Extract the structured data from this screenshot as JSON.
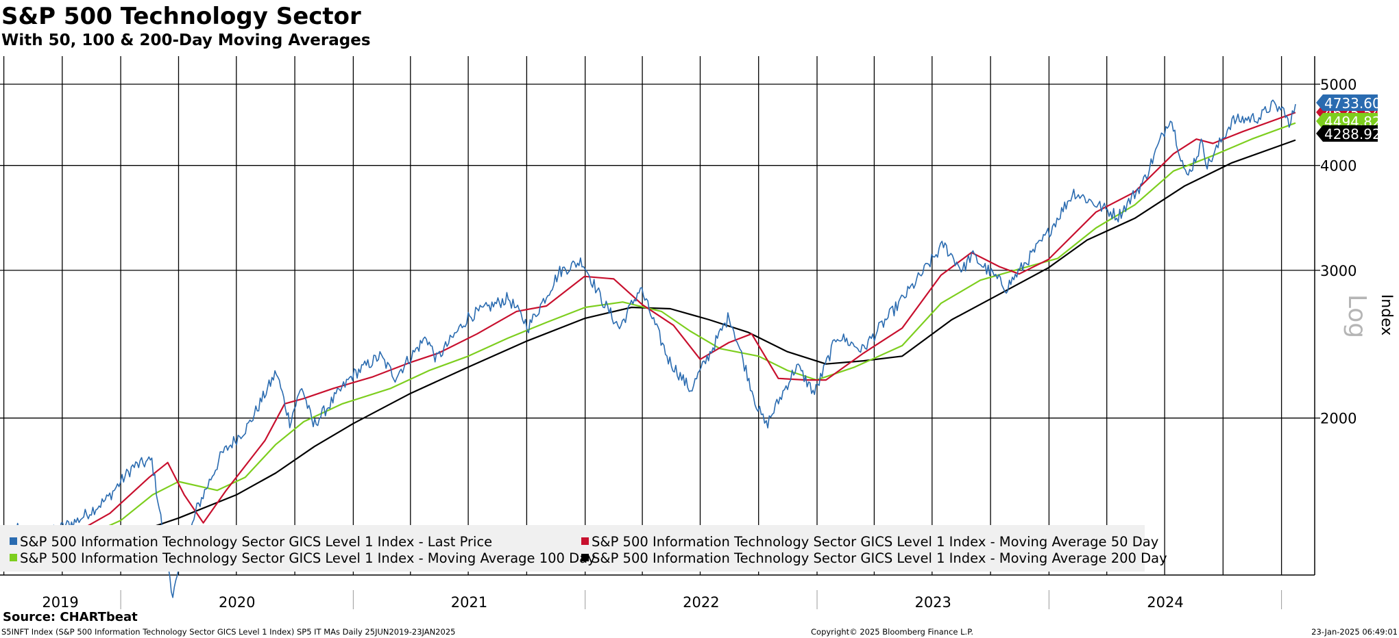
{
  "header": {
    "title": "S&P 500 Technology Sector",
    "subtitle": "With 50, 100 & 200-Day Moving Averages"
  },
  "footer": {
    "source": "Source: CHARTbeat",
    "description": "S5INFT Index (S&P 500 Information Technology Sector GICS Level 1 Index) SP5 IT MAs  Daily 25JUN2019-23JAN2025",
    "copyright": "Copyright© 2025 Bloomberg Finance L.P.",
    "timestamp": "23-Jan-2025 06:49:01"
  },
  "colors": {
    "price": "#2a6bb0",
    "ma50": "#c8102e",
    "ma100": "#7dce1e",
    "ma200": "#000000",
    "legend_bg": "#f0f0f0",
    "grid": "#000000"
  },
  "chart_data": {
    "type": "line",
    "x_range": [
      "2019-06-25",
      "2025-01-23"
    ],
    "y_scale": "log",
    "ylim": [
      1300,
      5400
    ],
    "ylabel": "Index",
    "scale_label": "Log",
    "y_ticks": [
      2000,
      3000,
      4000,
      5000
    ],
    "x_year_labels": [
      "2019",
      "2020",
      "2021",
      "2022",
      "2023",
      "2024"
    ],
    "grid": true,
    "legend_position": "bottom-left",
    "last_value_labels": [
      "4733.60",
      "4625.54",
      "4494.82",
      "4288.92"
    ],
    "series": [
      {
        "name": "S&P 500 Information Technology Sector GICS Level 1 Index - Last Price",
        "color_key": "price",
        "last": 4733.6,
        "points": [
          [
            "2019-06-25",
            1400
          ],
          [
            "2019-07-25",
            1490
          ],
          [
            "2019-08-20",
            1420
          ],
          [
            "2019-09-20",
            1470
          ],
          [
            "2019-10-25",
            1510
          ],
          [
            "2019-12-10",
            1600
          ],
          [
            "2020-01-20",
            1750
          ],
          [
            "2020-02-19",
            1780
          ],
          [
            "2020-03-23",
            1230
          ],
          [
            "2020-04-30",
            1560
          ],
          [
            "2020-06-08",
            1810
          ],
          [
            "2020-07-20",
            1960
          ],
          [
            "2020-09-02",
            2270
          ],
          [
            "2020-09-23",
            1980
          ],
          [
            "2020-10-12",
            2180
          ],
          [
            "2020-10-30",
            1960
          ],
          [
            "2020-12-31",
            2250
          ],
          [
            "2021-02-12",
            2370
          ],
          [
            "2021-03-08",
            2240
          ],
          [
            "2021-04-26",
            2500
          ],
          [
            "2021-05-12",
            2350
          ],
          [
            "2021-07-01",
            2640
          ],
          [
            "2021-09-02",
            2780
          ],
          [
            "2021-10-04",
            2570
          ],
          [
            "2021-11-22",
            2990
          ],
          [
            "2021-12-27",
            3080
          ],
          [
            "2022-01-27",
            2770
          ],
          [
            "2022-02-24",
            2560
          ],
          [
            "2022-03-29",
            2860
          ],
          [
            "2022-05-12",
            2350
          ],
          [
            "2022-06-16",
            2160
          ],
          [
            "2022-08-16",
            2650
          ],
          [
            "2022-09-30",
            2050
          ],
          [
            "2022-10-13",
            1960
          ],
          [
            "2022-11-30",
            2310
          ],
          [
            "2022-12-28",
            2140
          ],
          [
            "2023-02-02",
            2510
          ],
          [
            "2023-03-13",
            2410
          ],
          [
            "2023-05-31",
            2870
          ],
          [
            "2023-07-19",
            3220
          ],
          [
            "2023-08-18",
            3000
          ],
          [
            "2023-09-01",
            3130
          ],
          [
            "2023-10-26",
            2860
          ],
          [
            "2023-12-28",
            3300
          ],
          [
            "2024-02-09",
            3720
          ],
          [
            "2024-04-19",
            3480
          ],
          [
            "2024-05-29",
            3830
          ],
          [
            "2024-07-10",
            4580
          ],
          [
            "2024-08-05",
            3860
          ],
          [
            "2024-08-30",
            4280
          ],
          [
            "2024-09-06",
            3990
          ],
          [
            "2024-10-15",
            4520
          ],
          [
            "2024-11-29",
            4570
          ],
          [
            "2024-12-16",
            4720
          ],
          [
            "2025-01-07",
            4640
          ],
          [
            "2025-01-13",
            4430
          ],
          [
            "2025-01-23",
            4733.6
          ]
        ]
      },
      {
        "name": "S&P 500 Information Technology Sector GICS Level 1 Index - Moving Average 50 Day",
        "color_key": "ma50",
        "last": 4625.54,
        "points": [
          [
            "2019-06-25",
            1380
          ],
          [
            "2019-08-15",
            1440
          ],
          [
            "2019-10-15",
            1450
          ],
          [
            "2019-12-15",
            1540
          ],
          [
            "2020-02-15",
            1700
          ],
          [
            "2020-03-15",
            1770
          ],
          [
            "2020-04-10",
            1620
          ],
          [
            "2020-05-10",
            1500
          ],
          [
            "2020-06-15",
            1640
          ],
          [
            "2020-08-15",
            1880
          ],
          [
            "2020-09-15",
            2080
          ],
          [
            "2020-10-15",
            2110
          ],
          [
            "2020-12-01",
            2170
          ],
          [
            "2021-02-01",
            2240
          ],
          [
            "2021-04-01",
            2330
          ],
          [
            "2021-05-15",
            2390
          ],
          [
            "2021-07-15",
            2520
          ],
          [
            "2021-09-15",
            2680
          ],
          [
            "2021-11-01",
            2720
          ],
          [
            "2021-12-31",
            2950
          ],
          [
            "2022-02-15",
            2930
          ],
          [
            "2022-04-01",
            2730
          ],
          [
            "2022-05-20",
            2580
          ],
          [
            "2022-07-01",
            2350
          ],
          [
            "2022-08-15",
            2460
          ],
          [
            "2022-09-20",
            2520
          ],
          [
            "2022-11-01",
            2230
          ],
          [
            "2022-12-15",
            2220
          ],
          [
            "2023-01-15",
            2220
          ],
          [
            "2023-03-15",
            2390
          ],
          [
            "2023-05-15",
            2560
          ],
          [
            "2023-07-15",
            2960
          ],
          [
            "2023-09-01",
            3150
          ],
          [
            "2023-10-15",
            3030
          ],
          [
            "2023-11-15",
            2970
          ],
          [
            "2023-12-31",
            3090
          ],
          [
            "2024-03-15",
            3520
          ],
          [
            "2024-05-15",
            3720
          ],
          [
            "2024-07-15",
            4130
          ],
          [
            "2024-08-20",
            4300
          ],
          [
            "2024-09-15",
            4250
          ],
          [
            "2024-11-01",
            4390
          ],
          [
            "2025-01-23",
            4625.54
          ]
        ]
      },
      {
        "name": "S&P 500 Information Technology Sector GICS Level 1 Index - Moving Average 100 Day",
        "color_key": "ma100",
        "last": 4494.82,
        "points": [
          [
            "2019-06-25",
            1350
          ],
          [
            "2019-09-01",
            1410
          ],
          [
            "2019-11-01",
            1440
          ],
          [
            "2020-01-01",
            1510
          ],
          [
            "2020-02-20",
            1620
          ],
          [
            "2020-04-01",
            1680
          ],
          [
            "2020-06-01",
            1640
          ],
          [
            "2020-07-15",
            1700
          ],
          [
            "2020-09-01",
            1860
          ],
          [
            "2020-10-15",
            1980
          ],
          [
            "2020-12-15",
            2080
          ],
          [
            "2021-03-01",
            2170
          ],
          [
            "2021-05-01",
            2280
          ],
          [
            "2021-07-01",
            2370
          ],
          [
            "2021-09-01",
            2490
          ],
          [
            "2021-11-01",
            2600
          ],
          [
            "2022-01-01",
            2710
          ],
          [
            "2022-03-01",
            2750
          ],
          [
            "2022-05-01",
            2680
          ],
          [
            "2022-06-15",
            2540
          ],
          [
            "2022-08-01",
            2420
          ],
          [
            "2022-10-01",
            2370
          ],
          [
            "2022-11-15",
            2280
          ],
          [
            "2022-12-31",
            2220
          ],
          [
            "2023-03-01",
            2300
          ],
          [
            "2023-05-15",
            2440
          ],
          [
            "2023-07-15",
            2740
          ],
          [
            "2023-09-15",
            2920
          ],
          [
            "2023-11-15",
            3010
          ],
          [
            "2024-01-15",
            3100
          ],
          [
            "2024-03-15",
            3370
          ],
          [
            "2024-05-15",
            3590
          ],
          [
            "2024-07-15",
            3940
          ],
          [
            "2024-09-15",
            4110
          ],
          [
            "2024-11-15",
            4300
          ],
          [
            "2025-01-23",
            4494.82
          ]
        ]
      },
      {
        "name": "S&P 500 Information Technology Sector GICS Level 1 Index - Moving Average 200 Day",
        "color_key": "ma200",
        "last": 4288.92,
        "points": [
          [
            "2019-06-25",
            1320
          ],
          [
            "2019-10-01",
            1380
          ],
          [
            "2020-01-01",
            1440
          ],
          [
            "2020-04-01",
            1520
          ],
          [
            "2020-07-01",
            1620
          ],
          [
            "2020-09-01",
            1720
          ],
          [
            "2020-11-01",
            1850
          ],
          [
            "2021-01-01",
            1970
          ],
          [
            "2021-04-01",
            2140
          ],
          [
            "2021-07-01",
            2300
          ],
          [
            "2021-10-01",
            2470
          ],
          [
            "2022-01-01",
            2630
          ],
          [
            "2022-03-15",
            2710
          ],
          [
            "2022-05-15",
            2700
          ],
          [
            "2022-07-15",
            2620
          ],
          [
            "2022-09-15",
            2530
          ],
          [
            "2022-11-15",
            2400
          ],
          [
            "2023-01-15",
            2320
          ],
          [
            "2023-03-15",
            2340
          ],
          [
            "2023-05-15",
            2370
          ],
          [
            "2023-08-01",
            2620
          ],
          [
            "2023-10-15",
            2810
          ],
          [
            "2023-12-31",
            3020
          ],
          [
            "2024-03-01",
            3260
          ],
          [
            "2024-05-15",
            3460
          ],
          [
            "2024-08-01",
            3780
          ],
          [
            "2024-10-15",
            4030
          ],
          [
            "2025-01-23",
            4288.92
          ]
        ]
      }
    ]
  }
}
